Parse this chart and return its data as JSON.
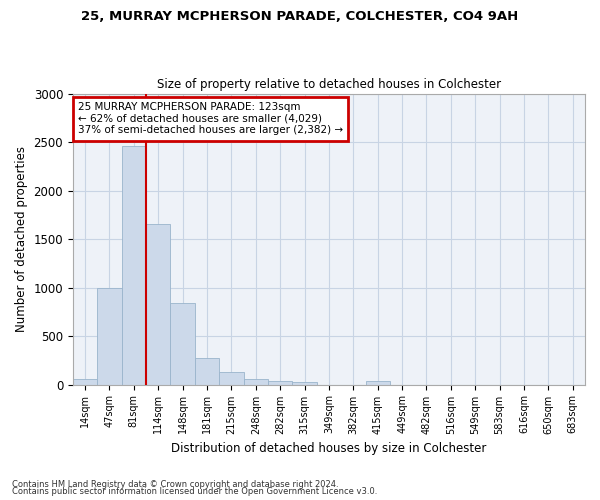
{
  "title1": "25, MURRAY MCPHERSON PARADE, COLCHESTER, CO4 9AH",
  "title2": "Size of property relative to detached houses in Colchester",
  "xlabel": "Distribution of detached houses by size in Colchester",
  "ylabel": "Number of detached properties",
  "bar_labels": [
    "14sqm",
    "47sqm",
    "81sqm",
    "114sqm",
    "148sqm",
    "181sqm",
    "215sqm",
    "248sqm",
    "282sqm",
    "315sqm",
    "349sqm",
    "382sqm",
    "415sqm",
    "449sqm",
    "482sqm",
    "516sqm",
    "549sqm",
    "583sqm",
    "616sqm",
    "650sqm",
    "683sqm"
  ],
  "bar_values": [
    55,
    1000,
    2460,
    1660,
    840,
    270,
    130,
    55,
    35,
    25,
    0,
    0,
    35,
    0,
    0,
    0,
    0,
    0,
    0,
    0,
    0
  ],
  "bar_color": "#ccd9ea",
  "bar_edge_color": "#9ab4cc",
  "grid_color": "#c8d4e4",
  "bg_color": "#ffffff",
  "plot_bg_color": "#eef2f8",
  "vline_x": 2.5,
  "vline_color": "#cc0000",
  "annotation_lines": [
    "25 MURRAY MCPHERSON PARADE: 123sqm",
    "← 62% of detached houses are smaller (4,029)",
    "37% of semi-detached houses are larger (2,382) →"
  ],
  "annotation_box_edge": "#cc0000",
  "footnote1": "Contains HM Land Registry data © Crown copyright and database right 2024.",
  "footnote2": "Contains public sector information licensed under the Open Government Licence v3.0.",
  "ylim": [
    0,
    3000
  ],
  "figsize": [
    6.0,
    5.0
  ],
  "dpi": 100
}
